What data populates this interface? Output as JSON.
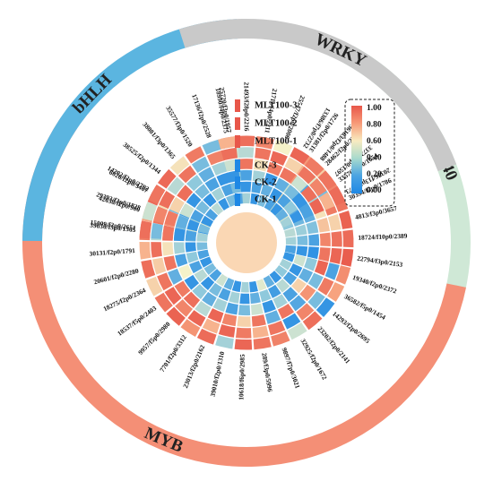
{
  "chart_data": {
    "type": "heatmap",
    "layout": "circular",
    "rows": [
      "MLT100-3",
      "MLT100-2",
      "MLT100-1",
      "CK-3",
      "CK-2",
      "CK-1"
    ],
    "legend": {
      "ticks": [
        "1.00",
        "0.80",
        "0.60",
        "0.40",
        "0.20",
        "0.00"
      ],
      "range": [
        0,
        1
      ],
      "colors": [
        "#1e88e5",
        "#8fc9dc",
        "#f5f2c9",
        "#f7a37f",
        "#e8574a"
      ],
      "placement": "top-right"
    },
    "families": [
      {
        "name": "WD40",
        "color": "#cfe8d6",
        "genes": [
          "31381/f2p0/1726",
          "28462/f2p0/2303",
          "33576/f3p0/1654",
          "30394/f2p0/1786",
          "4813/f3p0/3657",
          "18724/f10p0/2389",
          "22794/f3p0/2153"
        ]
      },
      {
        "name": "MYB",
        "color": "#f48f76",
        "genes": [
          "19340/f2p0/2372",
          "36582/f5p0/1454",
          "14293/f2p0/2695",
          "23202/f2p0/2141",
          "32925/f2p0/1672",
          "9897/f7p0/3021",
          "289/f3p0/5996",
          "10618/f6p0/2985",
          "39010/f2p0/1310",
          "23013/f2p0/2162",
          "7701/f2p0/3312",
          "9957/f5p0/2980",
          "18537/f5p0/2403",
          "18275/f2p0/2364",
          "20601/f2p0/2280",
          "30131/f2p0/1791",
          "39030/f3p0/1305",
          "42638/f2p0/900",
          "6026/f2p0/3407"
        ]
      },
      {
        "name": "bHLH",
        "color": "#5bb5e0",
        "genes": [
          "15009/f2p0/2651",
          "29393/f3p0/1828",
          "14202/f2p0/2702",
          "38525/f2p0/1344",
          "38081/f3p0/1365",
          "35577/f3p0/1520",
          "17136/f2p0/2528",
          "25720/f3p0/1957"
        ]
      },
      {
        "name": "WRKY",
        "color": "#c9c9c9",
        "genes": [
          "18990/f4p0/2375",
          "21493/f28p0/2216",
          "21711/f4p0/2211",
          "25547/f2p0/2006",
          "13386/f7p0/2732",
          "36183/f2p0/1488",
          "33728/f2p0/1597",
          "20376/f13p0/2273"
        ]
      }
    ],
    "values": {
      "WD40": [
        [
          0.78,
          0.62,
          0.85,
          0.9,
          0.96,
          0.93,
          0.98
        ],
        [
          0.71,
          0.45,
          0.2,
          0.88,
          0.6,
          0.91,
          0.95
        ],
        [
          0.8,
          0.12,
          0.3,
          0.55,
          0.65,
          0.85,
          0.9
        ],
        [
          0.4,
          0.05,
          0.1,
          0.15,
          0.22,
          0.1,
          0.04
        ],
        [
          0.55,
          0.3,
          0.12,
          0.18,
          0.28,
          0.2,
          0.05
        ],
        [
          0.35,
          0.2,
          0.45,
          0.25,
          0.35,
          0.3,
          0.1
        ]
      ],
      "MYB": [
        [
          0.82,
          0.75,
          0.05,
          0.92,
          0.4,
          0.86,
          0.9,
          0.95,
          0.3,
          0.93,
          0.8,
          0.96,
          0.9,
          0.6,
          0.92,
          0.7,
          0.88,
          0.75,
          0.94
        ],
        [
          0.1,
          0.88,
          0.2,
          0.85,
          0.05,
          0.9,
          0.7,
          0.88,
          0.95,
          0.7,
          0.95,
          0.85,
          0.95,
          0.9,
          0.62,
          0.92,
          0.35,
          0.9,
          0.55
        ],
        [
          0.95,
          0.2,
          0.8,
          0.12,
          0.9,
          0.15,
          0.9,
          0.6,
          0.85,
          0.95,
          0.35,
          0.92,
          0.88,
          0.15,
          0.9,
          0.55,
          0.92,
          0.82,
          0.2
        ],
        [
          0.25,
          0.15,
          0.6,
          0.1,
          0.3,
          0.05,
          0.4,
          0.2,
          0.1,
          0.3,
          0.15,
          0.25,
          0.05,
          0.5,
          0.1,
          0.3,
          0.05,
          0.2,
          0.1
        ],
        [
          0.4,
          0.05,
          0.1,
          0.35,
          0.08,
          0.25,
          0.15,
          0.05,
          0.3,
          0.1,
          0.2,
          0.05,
          0.35,
          0.1,
          0.25,
          0.05,
          0.15,
          0.4,
          0.3
        ],
        [
          0.05,
          0.3,
          0.25,
          0.05,
          0.15,
          0.45,
          0.05,
          0.3,
          0.05,
          0.15,
          0.4,
          0.1,
          0.2,
          0.05,
          0.1,
          0.2,
          0.35,
          0.05,
          0.45
        ]
      ],
      "bHLH": [
        [
          0.92,
          0.4,
          0.9,
          0.94,
          0.55,
          0.88,
          0.2,
          0.9
        ],
        [
          0.2,
          0.85,
          0.92,
          0.35,
          0.9,
          0.2,
          0.86,
          0.4
        ],
        [
          0.9,
          0.88,
          0.6,
          0.92,
          0.25,
          0.15,
          0.3,
          0.88
        ],
        [
          0.05,
          0.15,
          0.4,
          0.05,
          0.2,
          0.1,
          0.05,
          0.25
        ],
        [
          0.1,
          0.05,
          0.1,
          0.2,
          0.05,
          0.3,
          0.1,
          0.05
        ],
        [
          0.3,
          0.2,
          0.05,
          0.1,
          0.35,
          0.05,
          0.2,
          0.15
        ]
      ],
      "WRKY": [
        [
          0.7,
          0.92,
          0.85,
          0.5,
          0.95,
          0.88,
          0.9,
          0.93
        ],
        [
          0.92,
          0.35,
          0.9,
          0.94,
          0.6,
          0.9,
          0.85,
          0.7
        ],
        [
          0.4,
          0.9,
          0.55,
          0.88,
          0.9,
          0.4,
          0.92,
          0.95
        ],
        [
          0.05,
          0.1,
          0.3,
          0.05,
          0.15,
          0.2,
          0.05,
          0.1
        ],
        [
          0.2,
          0.05,
          0.1,
          0.15,
          0.05,
          0.1,
          0.25,
          0.05
        ],
        [
          0.1,
          0.3,
          0.05,
          0.2,
          0.1,
          0.05,
          0.15,
          0.3
        ]
      ]
    }
  }
}
